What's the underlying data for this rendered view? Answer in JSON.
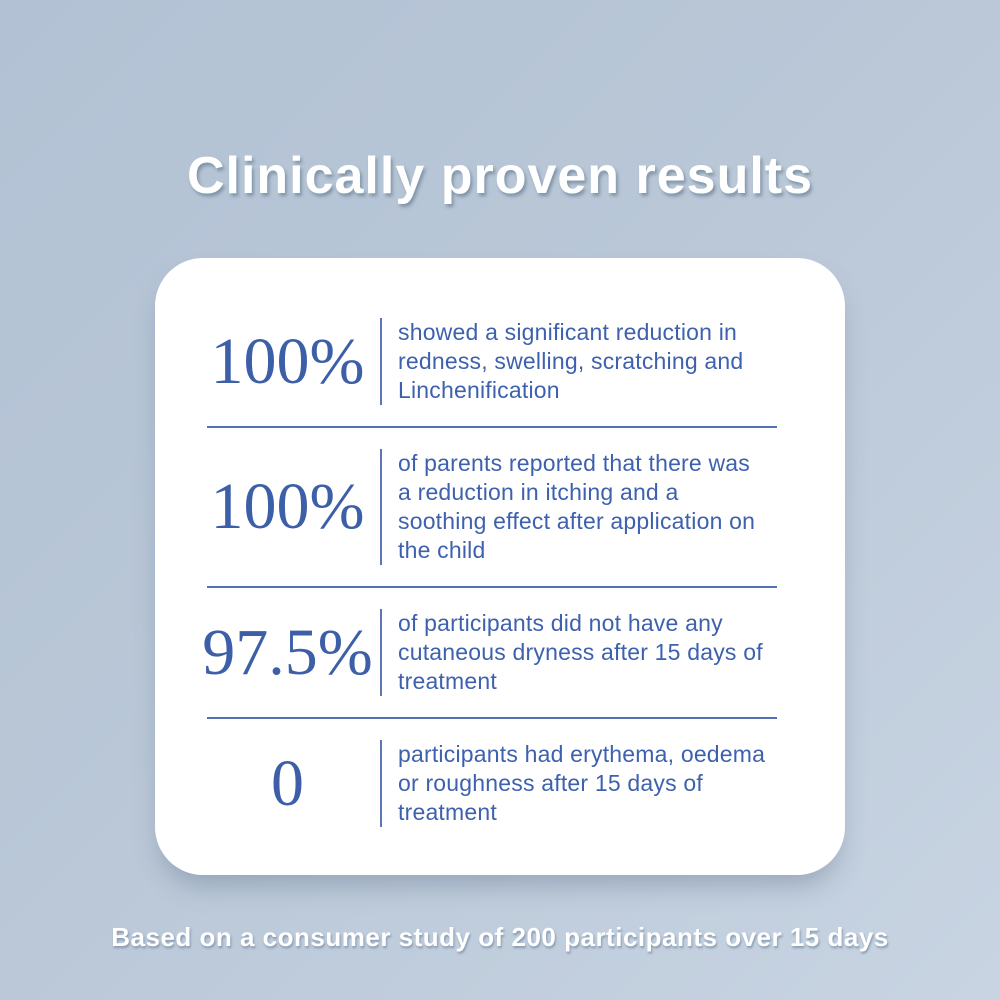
{
  "title": "Clinically proven results",
  "footer": "Based on a consumer study of 200 participants over 15 days",
  "stats": [
    {
      "value": "100%",
      "description": "showed a significant reduction in redness, swelling, scratching and Linchenification"
    },
    {
      "value": "100%",
      "description": "of parents reported that there was a reduction in itching and a soothing effect after application on the child"
    },
    {
      "value": "97.5%",
      "description": "of participants did not have any cutaneous dryness after 15 days of treatment"
    },
    {
      "value": "0",
      "description": "participants had erythema, oedema or roughness after 15 days of treatment"
    }
  ],
  "colors": {
    "background_top": "#b2c2d4",
    "background_bottom": "#c8d4e2",
    "card_background": "#ffffff",
    "stat_blue": "#3d5fa8",
    "text_blue": "#3e61ae",
    "divider_blue": "#5571b5",
    "title_white": "#ffffff"
  }
}
